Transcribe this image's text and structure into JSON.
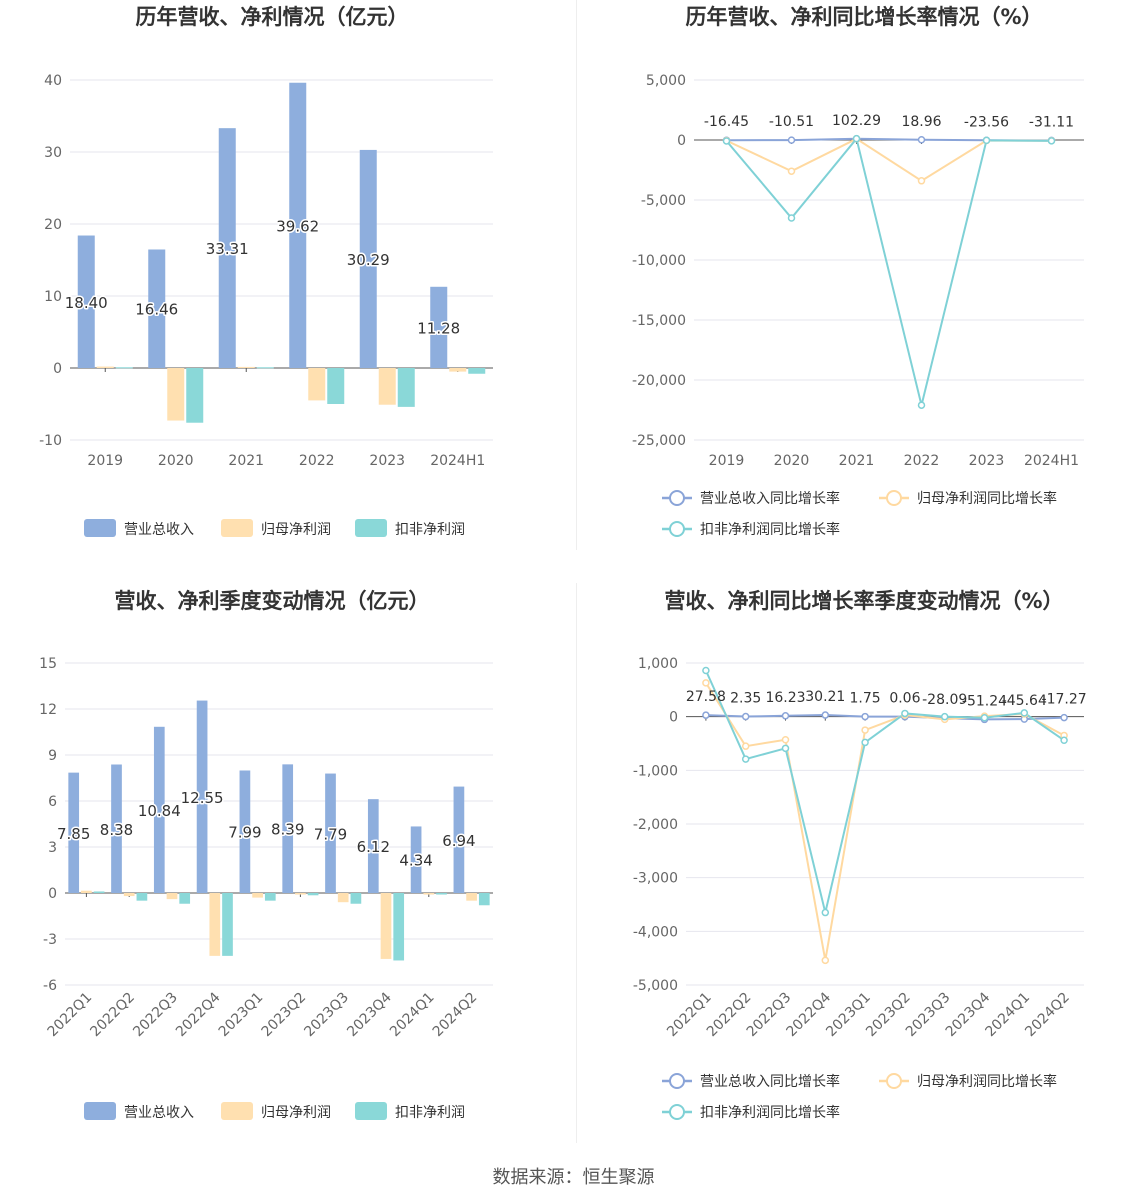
{
  "colors": {
    "revenue": "#8eaedd",
    "net_profit": "#ffe0b0",
    "deducted_profit": "#8ad8d8",
    "revenue_line": "#8aa4d8",
    "net_line": "#ffd9a0",
    "ded_line": "#7fd1d6",
    "grid": "#e6e6ee",
    "axis": "#555555"
  },
  "legend": {
    "revenue": "营业总收入",
    "net_profit": "归母净利润",
    "deducted_profit": "扣非净利润",
    "revenue_growth": "营业总收入同比增长率",
    "net_growth": "归母净利润同比增长率",
    "deducted_growth": "扣非净利润同比增长率"
  },
  "source": "数据来源：恒生聚源",
  "chart_data": [
    {
      "id": "annual-values",
      "type": "bar",
      "title": "历年营收、净利情况（亿元）",
      "categories": [
        "2019",
        "2020",
        "2021",
        "2022",
        "2023",
        "2024H1"
      ],
      "ylim": [
        -10,
        40
      ],
      "yticks": [
        -10,
        0,
        10,
        20,
        30,
        40
      ],
      "series": [
        {
          "name": "营业总收入",
          "values": [
            18.4,
            16.46,
            33.31,
            39.62,
            30.29,
            11.28
          ],
          "labels": [
            "18.40",
            "16.46",
            "33.31",
            "39.62",
            "30.29",
            "11.28"
          ]
        },
        {
          "name": "归母净利润",
          "values": [
            0.2,
            -7.3,
            0.15,
            -4.5,
            -5.1,
            -0.5
          ]
        },
        {
          "name": "扣非净利润",
          "values": [
            0.1,
            -7.6,
            0.1,
            -5.0,
            -5.4,
            -0.8
          ]
        }
      ],
      "legend_position": "bottom",
      "grid": true
    },
    {
      "id": "annual-growth",
      "type": "line",
      "title": "历年营收、净利同比增长率情况（%）",
      "categories": [
        "2019",
        "2020",
        "2021",
        "2022",
        "2023",
        "2024H1"
      ],
      "ylim": [
        -25000,
        5000
      ],
      "yticks": [
        -25000,
        -20000,
        -15000,
        -10000,
        -5000,
        0,
        5000
      ],
      "ytick_labels": [
        "-25,000",
        "-20,000",
        "-15,000",
        "-10,000",
        "-5,000",
        "0",
        "5,000"
      ],
      "series": [
        {
          "name": "营业总收入同比增长率",
          "values": [
            -16.45,
            -10.51,
            102.29,
            18.96,
            -23.56,
            -31.11
          ],
          "labels": [
            "-16.45",
            "-10.51",
            "102.29",
            "18.96",
            "-23.56",
            "-31.11"
          ]
        },
        {
          "name": "归母净利润同比增长率",
          "values": [
            -50,
            -2600,
            100,
            -3400,
            -40,
            -60
          ]
        },
        {
          "name": "扣非净利润同比增长率",
          "values": [
            -80,
            -6500,
            110,
            -22100,
            -30,
            -70
          ]
        }
      ],
      "legend_position": "bottom",
      "grid": true
    },
    {
      "id": "quarterly-values",
      "type": "bar",
      "title": "营收、净利季度变动情况（亿元）",
      "categories": [
        "2022Q1",
        "2022Q2",
        "2022Q3",
        "2022Q4",
        "2023Q1",
        "2023Q2",
        "2023Q3",
        "2023Q4",
        "2024Q1",
        "2024Q2"
      ],
      "ylim": [
        -6,
        15
      ],
      "yticks": [
        -6,
        -3,
        0,
        3,
        6,
        9,
        12,
        15
      ],
      "series": [
        {
          "name": "营业总收入",
          "values": [
            7.85,
            8.38,
            10.84,
            12.55,
            7.99,
            8.39,
            7.79,
            6.12,
            4.34,
            6.94
          ],
          "labels": [
            "7.85",
            "8.38",
            "10.84",
            "12.55",
            "7.99",
            "8.39",
            "7.79",
            "6.12",
            "4.34",
            "6.94"
          ]
        },
        {
          "name": "归母净利润",
          "values": [
            0.15,
            -0.2,
            -0.4,
            -4.1,
            -0.3,
            -0.1,
            -0.6,
            -4.3,
            -0.1,
            -0.5
          ]
        },
        {
          "name": "扣非净利润",
          "values": [
            0.1,
            -0.5,
            -0.7,
            -4.1,
            -0.5,
            -0.15,
            -0.7,
            -4.4,
            -0.1,
            -0.8
          ]
        }
      ],
      "legend_position": "bottom",
      "grid": true
    },
    {
      "id": "quarterly-growth",
      "type": "line",
      "title": "营收、净利同比增长率季度变动情况（%）",
      "categories": [
        "2022Q1",
        "2022Q2",
        "2022Q3",
        "2022Q4",
        "2023Q1",
        "2023Q2",
        "2023Q3",
        "2023Q4",
        "2024Q1",
        "2024Q2"
      ],
      "ylim": [
        -5000,
        1000
      ],
      "yticks": [
        -5000,
        -4000,
        -3000,
        -2000,
        -1000,
        0,
        1000
      ],
      "ytick_labels": [
        "-5,000",
        "-4,000",
        "-3,000",
        "-2,000",
        "-1,000",
        "0",
        "1,000"
      ],
      "series": [
        {
          "name": "营业总收入同比增长率",
          "values": [
            27.58,
            2.35,
            16.23,
            30.21,
            1.75,
            0.06,
            -28.09,
            -51.24,
            -45.64,
            -17.27
          ],
          "labels": [
            "27.58",
            "2.35",
            "16.23",
            "30.21",
            "1.75",
            "0.06",
            "-28.09",
            "-51.24",
            "-45.64",
            "-17.27"
          ]
        },
        {
          "name": "归母净利润同比增长率",
          "values": [
            630,
            -550,
            -430,
            -4540,
            -250,
            30,
            -50,
            10,
            50,
            -350
          ]
        },
        {
          "name": "扣非净利润同比增长率",
          "values": [
            860,
            -790,
            -590,
            -3650,
            -480,
            60,
            0,
            -20,
            70,
            -440
          ]
        }
      ],
      "legend_position": "bottom",
      "grid": true
    }
  ]
}
